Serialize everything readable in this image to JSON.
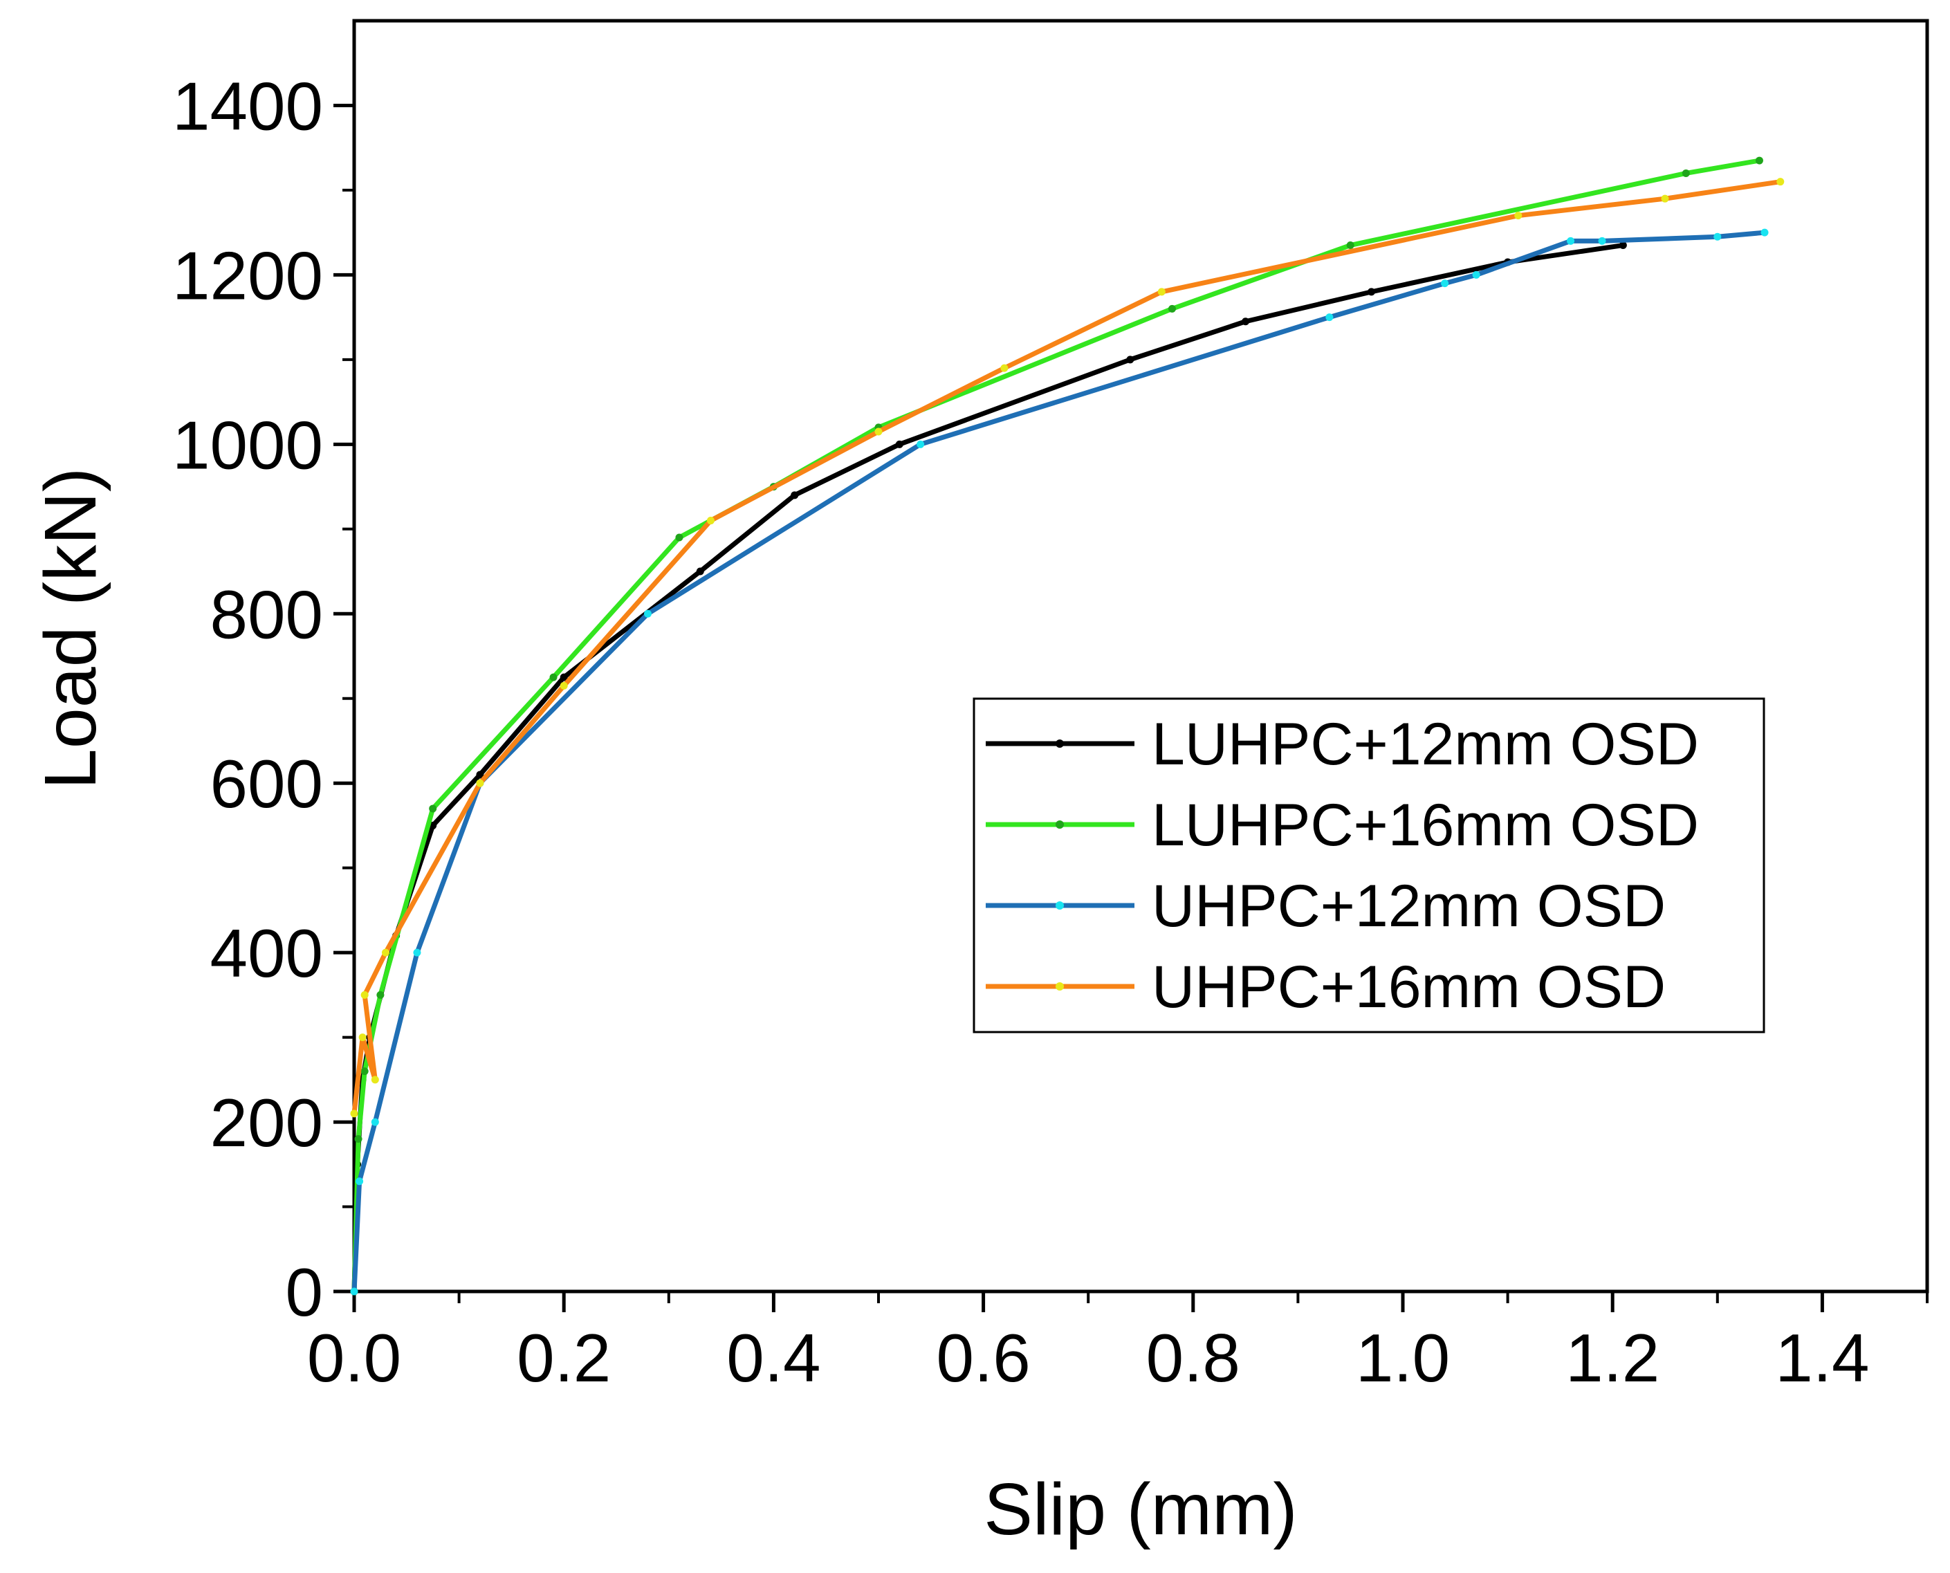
{
  "chart_data": {
    "type": "line",
    "title": "",
    "xlabel": "Slip (mm)",
    "ylabel": "Load (kN)",
    "xlim": [
      0,
      1.5
    ],
    "ylim": [
      0,
      1500
    ],
    "xticks": [
      0.0,
      0.2,
      0.4,
      0.6,
      0.8,
      1.0,
      1.2,
      1.4
    ],
    "xtick_labels": [
      "0.0",
      "0.2",
      "0.4",
      "0.6",
      "0.8",
      "1.0",
      "1.2",
      "1.4"
    ],
    "yticks": [
      0,
      200,
      400,
      600,
      800,
      1000,
      1200,
      1400
    ],
    "ytick_labels": [
      "0",
      "200",
      "400",
      "600",
      "800",
      "1000",
      "1200",
      "1400"
    ],
    "grid": false,
    "legend_position": "center-right",
    "series": [
      {
        "name": "LUHPC+12mm OSD",
        "color": "#000000",
        "marker_color": "#000000",
        "x": [
          0,
          0.003,
          0.008,
          0.015,
          0.04,
          0.075,
          0.12,
          0.2,
          0.33,
          0.42,
          0.52,
          0.74,
          0.85,
          0.97,
          1.1,
          1.21
        ],
        "y": [
          0,
          150,
          250,
          300,
          420,
          550,
          610,
          725,
          850,
          940,
          1000,
          1100,
          1145,
          1180,
          1215,
          1235
        ]
      },
      {
        "name": "LUHPC+16mm OSD",
        "color": "#33e51f",
        "marker_color": "#1fa51a",
        "x": [
          0,
          0.004,
          0.01,
          0.025,
          0.075,
          0.19,
          0.31,
          0.4,
          0.5,
          0.78,
          0.95,
          1.27,
          1.34
        ],
        "y": [
          0,
          180,
          260,
          350,
          570,
          725,
          890,
          950,
          1020,
          1160,
          1235,
          1320,
          1335
        ]
      },
      {
        "name": "UHPC+12mm OSD",
        "color": "#1f6fb5",
        "marker_color": "#19e3f0",
        "x": [
          0,
          0.005,
          0.02,
          0.06,
          0.12,
          0.28,
          0.54,
          0.93,
          1.04,
          1.07,
          1.16,
          1.19,
          1.3,
          1.345
        ],
        "y": [
          0,
          130,
          200,
          400,
          600,
          800,
          1000,
          1150,
          1190,
          1200,
          1240,
          1240,
          1245,
          1250
        ]
      },
      {
        "name": "UHPC+16mm OSD",
        "color": "#f78316",
        "marker_color": "#e8e81a",
        "x": [
          0,
          0.008,
          0.02,
          0.01,
          0.03,
          0.12,
          0.2,
          0.34,
          0.5,
          0.62,
          0.77,
          1.11,
          1.25,
          1.36
        ],
        "y": [
          210,
          300,
          250,
          350,
          400,
          600,
          715,
          910,
          1015,
          1090,
          1180,
          1270,
          1290,
          1310
        ]
      }
    ]
  }
}
